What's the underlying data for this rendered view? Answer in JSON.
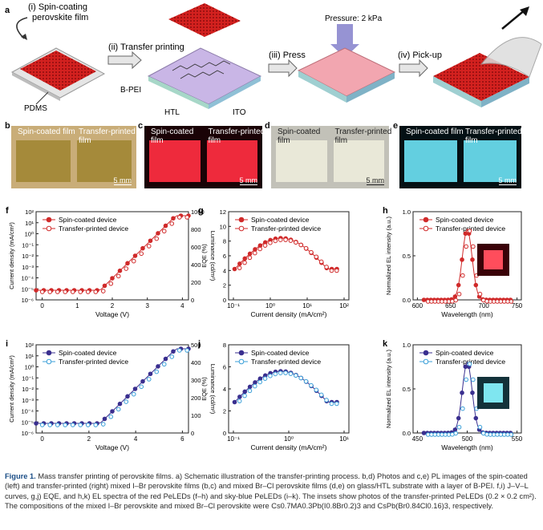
{
  "schematic": {
    "panel_label": "a",
    "step1": "(i) Spin-coating",
    "step1b": "perovskite film",
    "step2": "(ii) Transfer printing",
    "step3": "(iii) Press",
    "step4": "(iv) Pick-up",
    "pressure": "Pressure: 2 kPa",
    "pdms": "PDMS",
    "bpei": "B-PEI",
    "htl": "HTL",
    "ito": "ITO"
  },
  "photos": [
    {
      "label": "b",
      "left": "Spin-coated film",
      "right": "Transfer-printed film",
      "scale": "5 mm",
      "bg": "#c9ad78",
      "film": "#a58a3a"
    },
    {
      "label": "c",
      "left": "Spin-coated film",
      "right": "Transfer-printed film",
      "scale": "5 mm",
      "bg": "#1a0306",
      "film": "#ee2a3c"
    },
    {
      "label": "d",
      "left": "Spin-coated film",
      "right": "Transfer-printed film",
      "scale": "5 mm",
      "bg": "#c2c1b8",
      "film": "#e9e8d8"
    },
    {
      "label": "e",
      "left": "Spin-coated film",
      "right": "Transfer-printed film",
      "scale": "5 mm",
      "bg": "#041014",
      "film": "#63cfe0"
    }
  ],
  "charts": {
    "f": {
      "label": "f",
      "legend": [
        "Spin-coated device",
        "Transfer-printed device"
      ],
      "xlabel": "Voltage (V)",
      "ylabel": "Current density (mA/cm²)",
      "y2label": "Luminance (cd/m²)",
      "xticks": [
        "0",
        "1",
        "2",
        "3",
        "4"
      ],
      "yticks": [
        "10²",
        "10¹",
        "10⁰",
        "10⁻¹",
        "10⁻²",
        "10⁻³",
        "10⁻⁴",
        "10⁻⁵",
        "10⁻⁶"
      ],
      "y2ticks": [
        "1000",
        "800",
        "600",
        "400",
        "200",
        "0"
      ],
      "color": "#d02a2a"
    },
    "g": {
      "label": "g",
      "legend": [
        "Spin-coated device",
        "Transfer-printed device"
      ],
      "xlabel": "Current density (mA/cm²)",
      "ylabel": "EQE (%)",
      "xticks": [
        "10⁻¹",
        "10⁰",
        "10¹",
        "10²"
      ],
      "yticks": [
        "12",
        "10",
        "8",
        "6",
        "4",
        "2",
        "0"
      ],
      "color": "#d02a2a"
    },
    "h": {
      "label": "h",
      "legend": [
        "Spin-coated device",
        "Transfer-printed device"
      ],
      "xlabel": "Wavelength (nm)",
      "ylabel": "Normalized EL intensity (a.u.)",
      "xticks": [
        "600",
        "650",
        "700",
        "750"
      ],
      "yticks": [
        "1.0",
        "0.5",
        "0.0"
      ],
      "color": "#d02a2a"
    },
    "i": {
      "label": "i",
      "legend": [
        "Spin-coated device",
        "Transfer-printed device"
      ],
      "xlabel": "Voltage (V)",
      "ylabel": "Current density (mA/cm²)",
      "y2label": "Luminance (cd/m²)",
      "xticks": [
        "0",
        "2",
        "4",
        "6"
      ],
      "yticks": [
        "10²",
        "10¹",
        "10⁰",
        "10⁻¹",
        "10⁻²",
        "10⁻³",
        "10⁻⁴",
        "10⁻⁵",
        "10⁻⁶"
      ],
      "y2ticks": [
        "500",
        "400",
        "300",
        "200",
        "100",
        "0"
      ],
      "color1": "#3a2f8f",
      "color2": "#3a9fd8"
    },
    "j": {
      "label": "j",
      "legend": [
        "Spin-coated device",
        "Transfer-printed device"
      ],
      "xlabel": "Current density (mA/cm²)",
      "ylabel": "EQE (%)",
      "xticks": [
        "10⁻¹",
        "10⁰",
        "10¹"
      ],
      "yticks": [
        "8",
        "6",
        "4",
        "2",
        "0"
      ],
      "color1": "#3a2f8f",
      "color2": "#3a9fd8"
    },
    "k": {
      "label": "k",
      "legend": [
        "Spin-coated device",
        "Transfer-printed device"
      ],
      "xlabel": "Wavelength (nm)",
      "ylabel": "Normalized EL intensity (a.u.)",
      "xticks": [
        "450",
        "500",
        "550"
      ],
      "yticks": [
        "1.0",
        "0.5",
        "0.0"
      ],
      "color1": "#3a2f8f",
      "color2": "#3a9fd8"
    }
  },
  "caption": {
    "lead": "Figure 1.",
    "text": " Mass transfer printing of perovskite films. a) Schematic illustration of the transfer-printing process. b,d) Photos and c,e) PL images of the spin-coated (left) and transfer-printed (right) mixed I–Br perovskite films (b,c) and mixed Br–Cl perovskite films (d,e) on glass/HTL substrate with a layer of B-PEI. f,i) J–V–L curves, g,j) EQE, and h,k) EL spectra of the red PeLEDs (f–h) and sky-blue PeLEDs (i–k). The insets show photos of the transfer-printed PeLEDs (0.2 × 0.2 cm²). The compositions of the mixed I–Br perovskite and mixed Br–Cl perovskite were Cs0.7MA0.3Pb(I0.8Br0.2)3 and CsPb(Br0.84Cl0.16)3, respectively."
  }
}
